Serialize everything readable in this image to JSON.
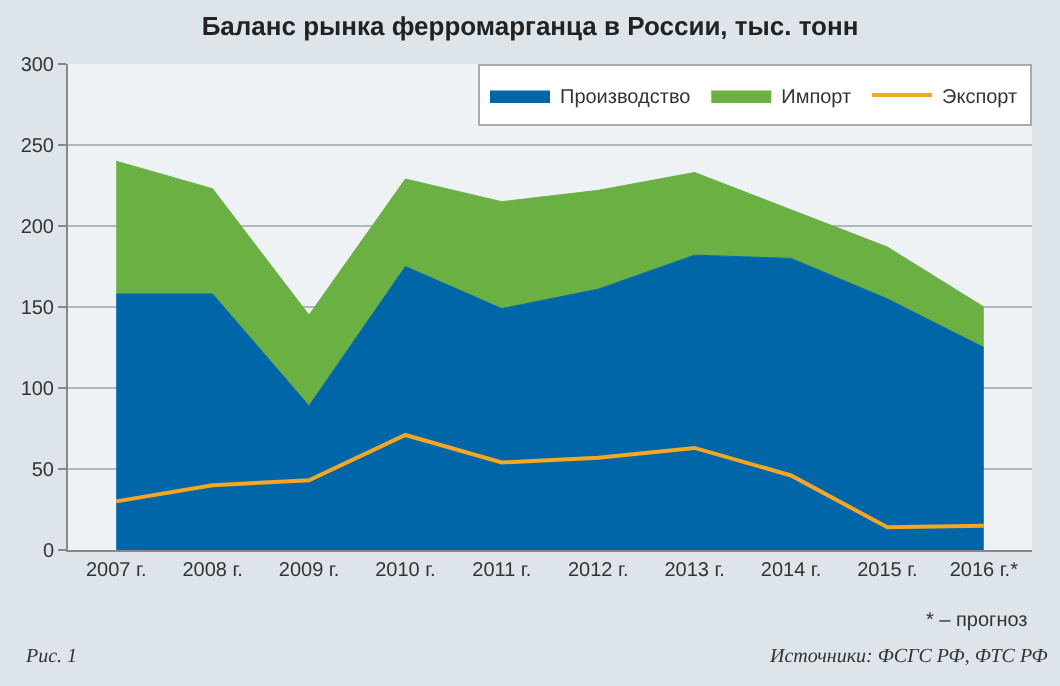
{
  "chart_data": {
    "type": "area",
    "stacked": true,
    "title": "Баланс рынка ферромарганца в России, тыс. тонн",
    "categories": [
      "2007 г.",
      "2008 г.",
      "2009 г.",
      "2010 г.",
      "2011 г.",
      "2012 г.",
      "2013 г.",
      "2014 г.",
      "2015 г.",
      "2016 г.*"
    ],
    "series": [
      {
        "name": "Производство",
        "color": "#0066a8",
        "values": [
          158,
          158,
          89,
          175,
          149,
          161,
          182,
          180,
          155,
          125
        ]
      },
      {
        "name": "Импорт",
        "color": "#6ab043",
        "values": [
          82,
          65,
          56,
          54,
          66,
          61,
          51,
          30,
          32,
          25
        ]
      },
      {
        "name": "Экспорт",
        "type": "line",
        "color": "#f5a623",
        "values": [
          30,
          40,
          43,
          71,
          54,
          57,
          63,
          46,
          14,
          15
        ]
      }
    ],
    "ylim": [
      0,
      300
    ],
    "yticks": [
      0,
      50,
      100,
      150,
      200,
      250,
      300
    ],
    "grid": "y",
    "legend": "top right",
    "annotations": [
      "* – прогноз",
      "Рис. 1",
      "Источники: ФСГС РФ, ФТС РФ"
    ]
  }
}
